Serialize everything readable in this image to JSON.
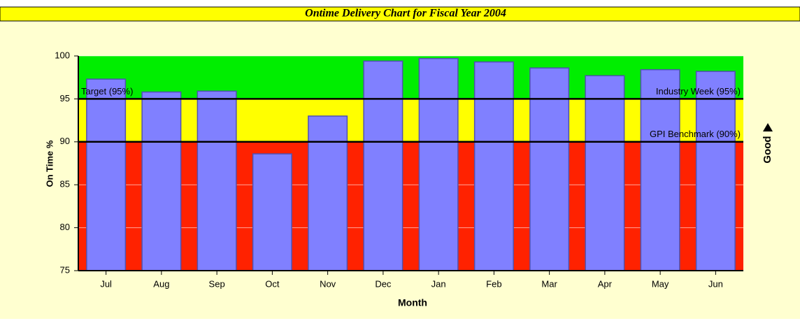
{
  "chart_data": {
    "type": "bar",
    "title": "Ontime Delivery Chart for Fiscal Year 2004",
    "x_label": "Month",
    "y_label": "On Time %",
    "categories": [
      "Jul",
      "Aug",
      "Sep",
      "Oct",
      "Nov",
      "Dec",
      "Jan",
      "Feb",
      "Mar",
      "Apr",
      "May",
      "Jun"
    ],
    "values": [
      97.3,
      95.8,
      95.9,
      88.6,
      93.0,
      99.4,
      99.7,
      99.3,
      98.6,
      97.7,
      98.4,
      98.2
    ],
    "color": "#8080ff",
    "ylim": [
      75,
      100
    ],
    "yticks": [
      75,
      80,
      85,
      90,
      95,
      100
    ],
    "grid": true,
    "bands": [
      {
        "from": 75,
        "to": 90,
        "color": "#ff2200"
      },
      {
        "from": 90,
        "to": 95,
        "color": "#ffff00"
      },
      {
        "from": 95,
        "to": 100,
        "color": "#00ee00"
      }
    ],
    "reference_lines": [
      {
        "value": 95,
        "labels": [
          "Target (95%)",
          "Industry Week (95%)"
        ]
      },
      {
        "value": 90,
        "labels": [
          "GPI Benchmark (90%)"
        ]
      }
    ],
    "direction_label": "Good"
  }
}
